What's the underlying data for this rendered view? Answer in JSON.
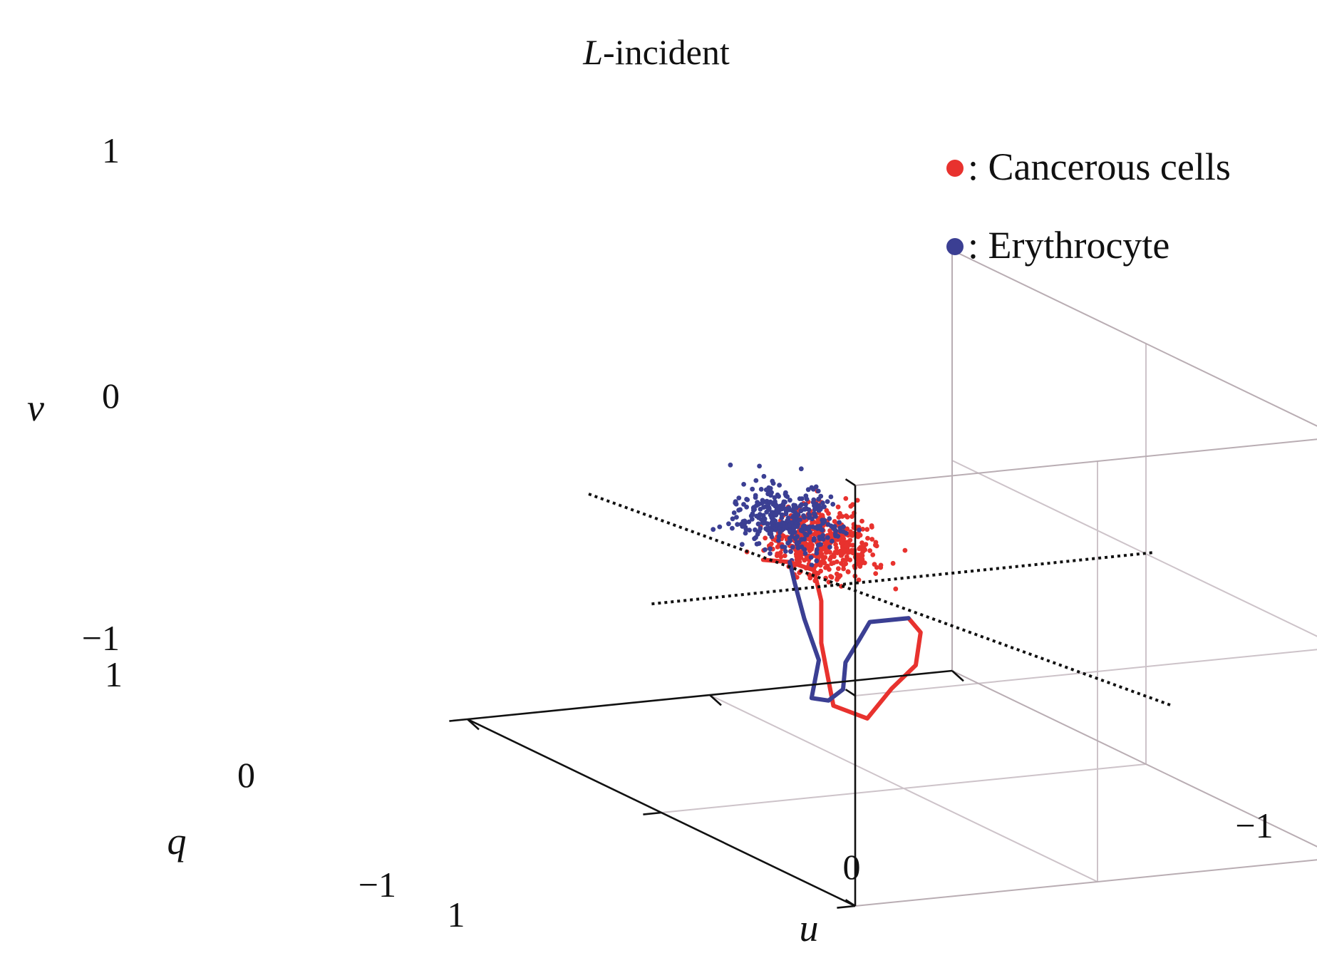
{
  "chart_data": {
    "type": "scatter",
    "projection": "3d",
    "title_italic": "L",
    "title_rest": "-incident",
    "axes": {
      "u": {
        "label": "u",
        "range": [
          -1,
          1
        ],
        "ticks": [
          "1",
          "0",
          "−1"
        ]
      },
      "q": {
        "label": "q",
        "range": [
          -1,
          1
        ],
        "ticks": [
          "1",
          "0",
          "−1"
        ]
      },
      "v": {
        "label": "v",
        "range": [
          -1,
          1
        ],
        "ticks": [
          "1",
          "0",
          "−1"
        ]
      }
    },
    "grid": true,
    "legend": {
      "position": "top-right",
      "entries": [
        {
          "label": ": Cancerous cells",
          "color": "#e8322e"
        },
        {
          "label": ": Erythrocyte",
          "color": "#3b3f93"
        }
      ]
    },
    "series": [
      {
        "kind": "point_cloud",
        "color": "#e8322e",
        "center": [
          0.1,
          0.3,
          0.05
        ],
        "spread": [
          0.12,
          0.12,
          0.1
        ],
        "count": 520
      },
      {
        "kind": "point_cloud",
        "color": "#3b3f93",
        "center": [
          0.25,
          0.3,
          0.18
        ],
        "spread": [
          0.12,
          0.12,
          0.1
        ],
        "count": 360
      },
      {
        "kind": "curve",
        "color": "#e8322e",
        "points": [
          [
            0.5,
            0.1,
            0.1
          ],
          [
            0.35,
            0.15,
            0.05
          ],
          [
            0.25,
            0.15,
            0.0
          ],
          [
            0.22,
            0.15,
            -0.15
          ],
          [
            0.22,
            0.15,
            -0.35
          ],
          [
            0.25,
            0.05,
            -0.6
          ],
          [
            0.15,
            0.0,
            -0.65
          ],
          [
            0.05,
            0.0,
            -0.52
          ],
          [
            -0.05,
            0.0,
            -0.42
          ],
          [
            -0.15,
            0.1,
            -0.32
          ],
          [
            -0.18,
            0.2,
            -0.3
          ]
        ]
      },
      {
        "kind": "curve",
        "color": "#3b3f93",
        "points": [
          [
            0.35,
            0.15,
            0.05
          ],
          [
            0.33,
            0.15,
            -0.05
          ],
          [
            0.33,
            0.1,
            -0.2
          ],
          [
            0.35,
            0.0,
            -0.35
          ],
          [
            0.42,
            -0.05,
            -0.5
          ],
          [
            0.35,
            -0.05,
            -0.52
          ],
          [
            0.25,
            0.0,
            -0.5
          ],
          [
            0.2,
            0.05,
            -0.4
          ],
          [
            0.1,
            0.1,
            -0.32
          ],
          [
            -0.02,
            0.2,
            -0.3
          ],
          [
            -0.18,
            0.2,
            -0.3
          ]
        ]
      },
      {
        "kind": "dotted_line",
        "color": "#111111",
        "points": [
          [
            1.3,
            0.0,
            0.55
          ],
          [
            -1.1,
            0.0,
            -0.73
          ]
        ]
      },
      {
        "kind": "dotted_line",
        "color": "#111111",
        "points": [
          [
            0.0,
            1.3,
            -0.7
          ],
          [
            0.0,
            -1.3,
            0.7
          ]
        ]
      }
    ]
  }
}
